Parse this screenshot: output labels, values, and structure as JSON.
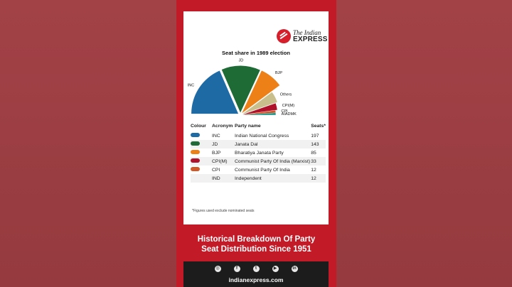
{
  "brand": {
    "line1": "The Indian",
    "line2": "EXPRESS"
  },
  "chart_data": {
    "type": "pie",
    "title": "Seat share in 1989 election",
    "categories": [
      "INC",
      "JD",
      "BJP",
      "Others",
      "CPI(M)",
      "CPI",
      "AIADMK"
    ],
    "values": [
      197,
      143,
      85,
      52,
      33,
      12,
      11
    ],
    "colors": [
      "#1d6aa5",
      "#1f6b36",
      "#ee8018",
      "#c9bf8c",
      "#b0122b",
      "#d05828",
      "#1e9a8e"
    ]
  },
  "table": {
    "headers": [
      "Colour",
      "Acronym",
      "Party name",
      "Seats*"
    ],
    "rows": [
      {
        "color": "#1d6aa5",
        "acronym": "INC",
        "name": "Indian National Congress",
        "seats": "197"
      },
      {
        "color": "#1f6b36",
        "acronym": "JD",
        "name": "Janata Dal",
        "seats": "143"
      },
      {
        "color": "#ee8018",
        "acronym": "BJP",
        "name": "Bharatiya Janata Party",
        "seats": "85"
      },
      {
        "color": "#b0122b",
        "acronym": "CPI(M)",
        "name": "Communist Party Of India (Marxist)",
        "seats": "33"
      },
      {
        "color": "#d05828",
        "acronym": "CPI",
        "name": "Communist Party Of India",
        "seats": "12"
      },
      {
        "color": "",
        "acronym": "IND",
        "name": "Independent",
        "seats": "12"
      }
    ]
  },
  "footnote": "*Figures used exclude nominated seats",
  "headline": {
    "line1": "Historical Breakdown Of Party",
    "line2": "Seat Distribution Since 1951"
  },
  "social": {
    "icons": [
      "instagram-icon",
      "facebook-icon",
      "twitter-icon",
      "youtube-icon",
      "linkedin-icon"
    ],
    "site": "indianexpress.com"
  }
}
